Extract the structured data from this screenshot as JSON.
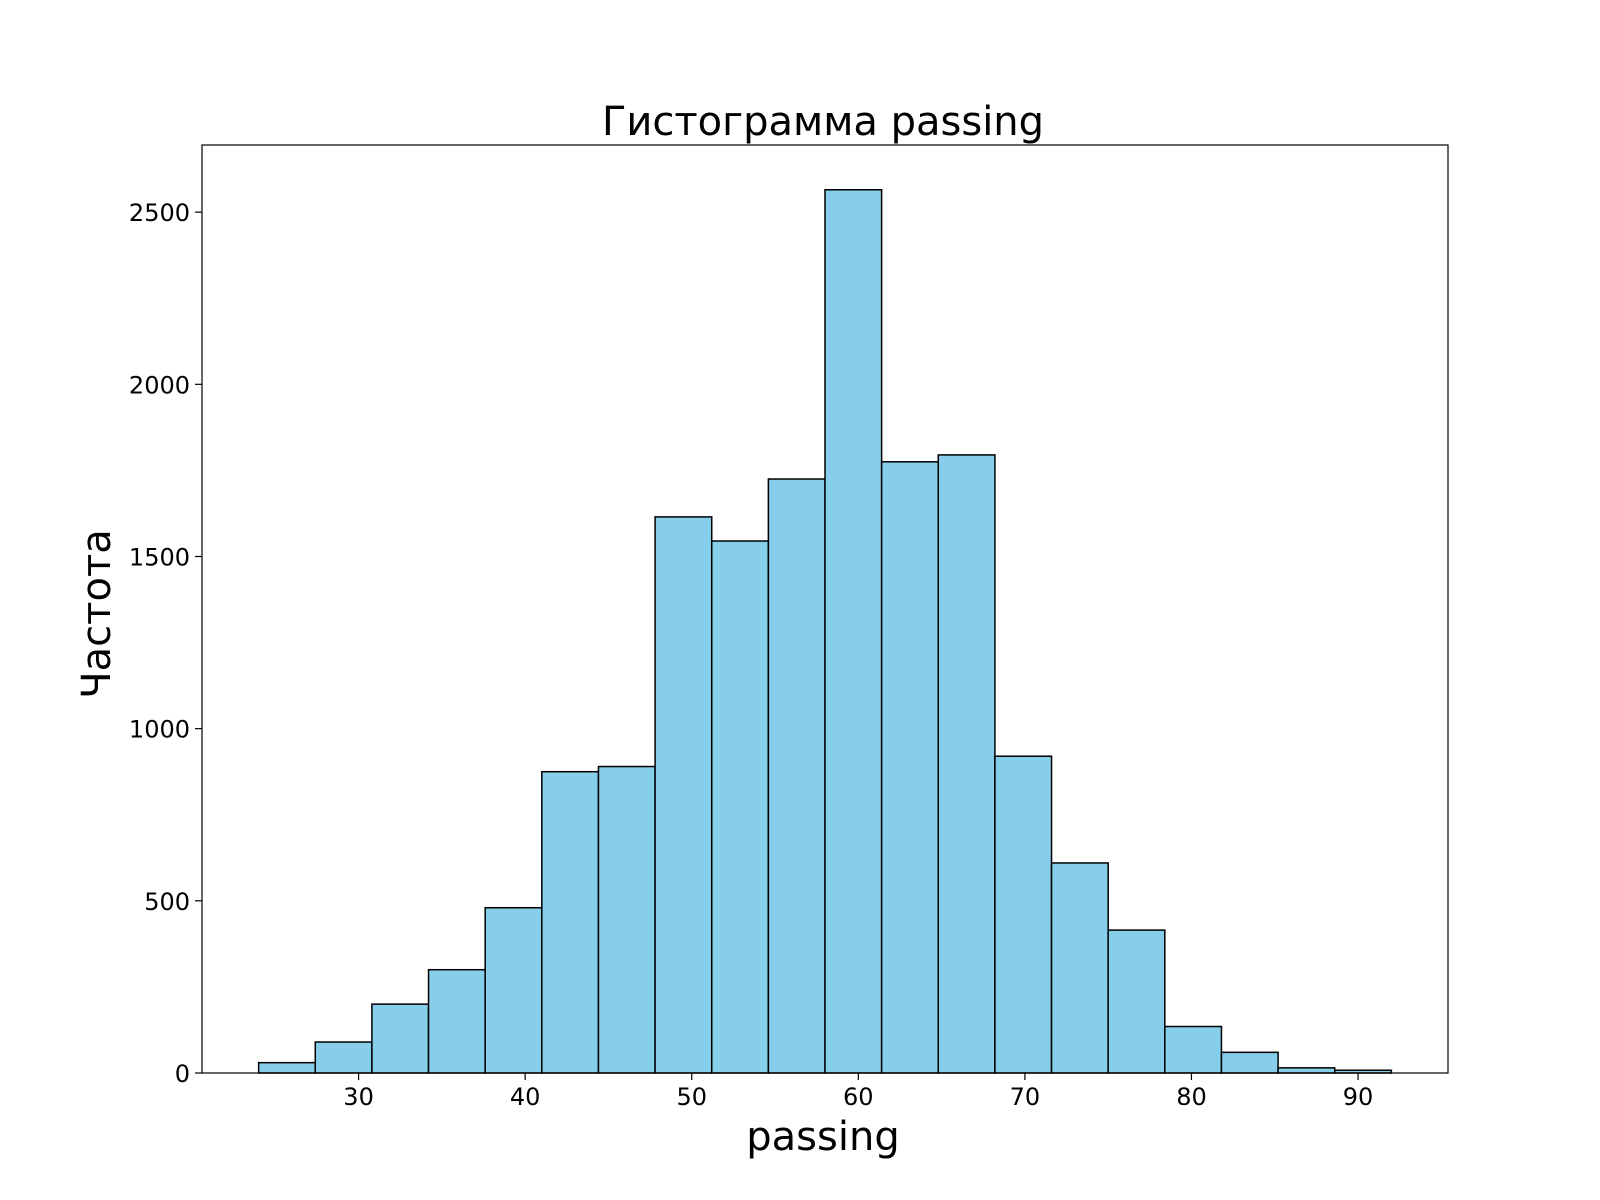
{
  "chart_data": {
    "type": "bar",
    "title": "Гистограмма passing",
    "xlabel": "passing",
    "ylabel": "Частота",
    "bin_edges": [
      24.0,
      27.4,
      30.8,
      34.2,
      37.6,
      41.0,
      44.4,
      47.8,
      51.2,
      54.6,
      58.0,
      61.4,
      64.8,
      68.2,
      71.6,
      75.0,
      78.4,
      81.8,
      85.2,
      88.6,
      92.0
    ],
    "values": [
      30,
      90,
      200,
      300,
      480,
      875,
      890,
      1615,
      1545,
      1725,
      2565,
      1775,
      1795,
      920,
      610,
      415,
      135,
      60,
      15,
      8
    ],
    "xlim": [
      20.6,
      95.4
    ],
    "ylim": [
      0,
      2695
    ],
    "xticks": [
      30,
      40,
      50,
      60,
      70,
      80,
      90
    ],
    "yticks": [
      0,
      500,
      1000,
      1500,
      2000,
      2500
    ],
    "xtick_labels": [
      "30",
      "40",
      "50",
      "60",
      "70",
      "80",
      "90"
    ],
    "ytick_labels": [
      "0",
      "500",
      "1000",
      "1500",
      "2000",
      "2500"
    ],
    "bar_color": "#87ceeb",
    "edge_color": "#000000",
    "grid": false
  }
}
